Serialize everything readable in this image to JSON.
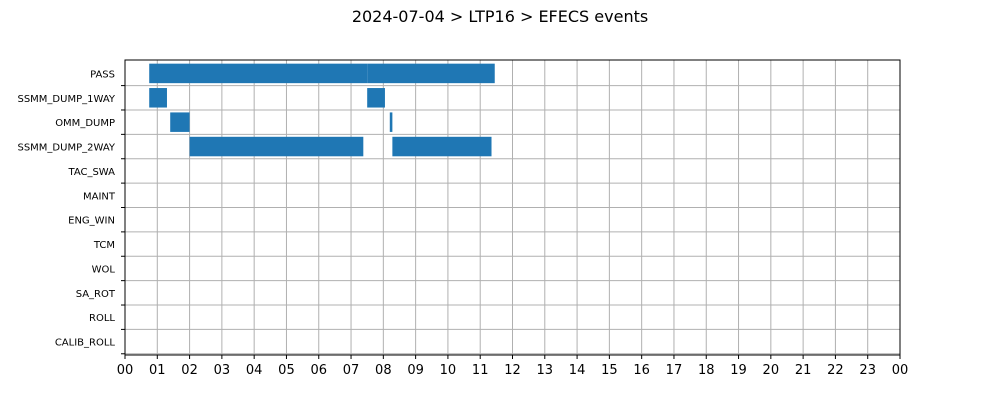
{
  "chart_data": {
    "type": "bar",
    "orientation": "horizontal-timeline",
    "title": "2024-07-04 > LTP16 > EFECS events",
    "xlabel": "",
    "ylabel": "",
    "xlim": [
      0,
      24
    ],
    "x_tick_labels": [
      "00",
      "01",
      "02",
      "03",
      "04",
      "05",
      "06",
      "07",
      "08",
      "09",
      "10",
      "11",
      "12",
      "13",
      "14",
      "15",
      "16",
      "17",
      "18",
      "19",
      "20",
      "21",
      "22",
      "23",
      "00"
    ],
    "grid": true,
    "bar_color": "#1f77b4",
    "categories": [
      "PASS",
      "SSMM_DUMP_1WAY",
      "OMM_DUMP",
      "SSMM_DUMP_2WAY",
      "TAC_SWA",
      "MAINT",
      "ENG_WIN",
      "TCM",
      "WOL",
      "SA_ROT",
      "ROLL",
      "CALIB_ROLL"
    ],
    "events": [
      {
        "category": "PASS",
        "start": 0.75,
        "end": 7.5
      },
      {
        "category": "PASS",
        "start": 7.5,
        "end": 11.45
      },
      {
        "category": "SSMM_DUMP_1WAY",
        "start": 0.75,
        "end": 1.3
      },
      {
        "category": "SSMM_DUMP_1WAY",
        "start": 7.5,
        "end": 8.05
      },
      {
        "category": "OMM_DUMP",
        "start": 1.4,
        "end": 2.0
      },
      {
        "category": "OMM_DUMP",
        "start": 8.2,
        "end": 8.28
      },
      {
        "category": "SSMM_DUMP_2WAY",
        "start": 2.0,
        "end": 7.38
      },
      {
        "category": "SSMM_DUMP_2WAY",
        "start": 8.28,
        "end": 11.35
      }
    ]
  }
}
